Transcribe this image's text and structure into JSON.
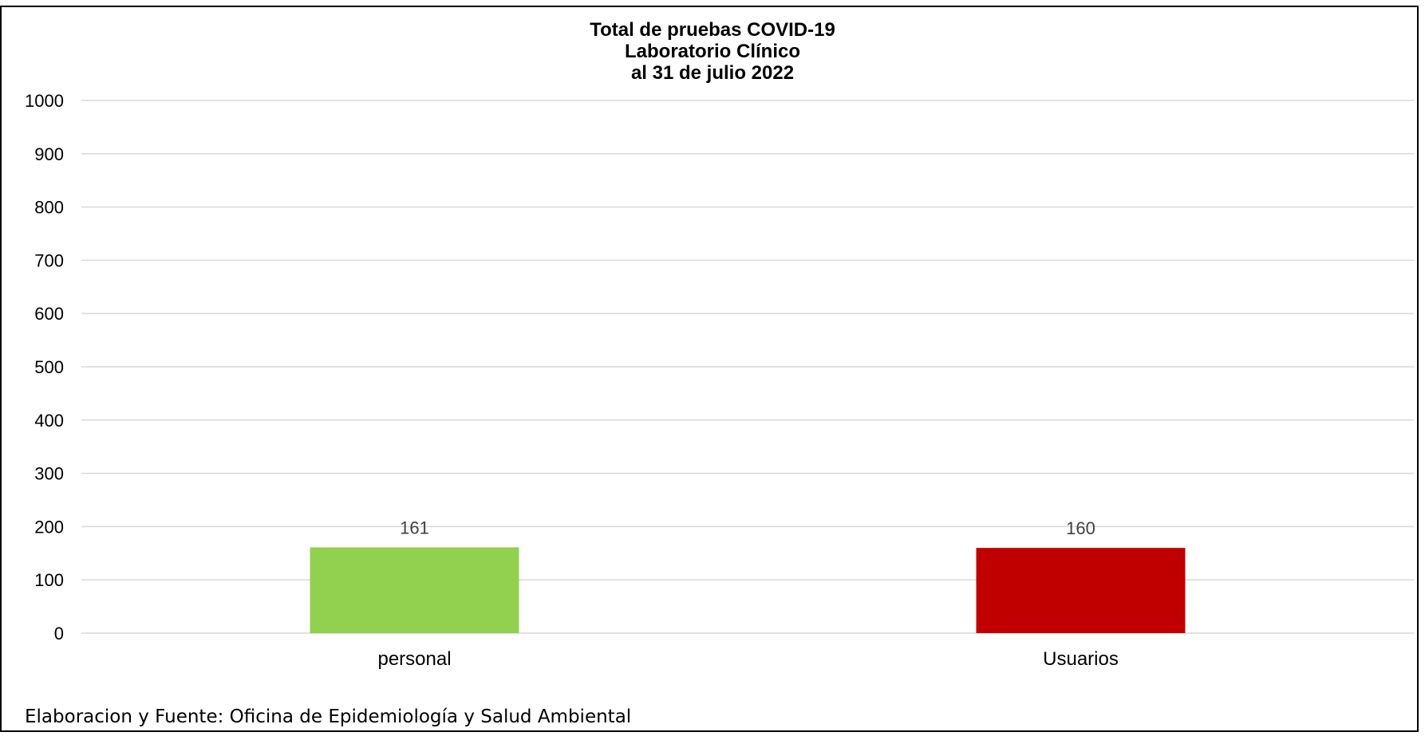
{
  "chart_data": {
    "type": "bar",
    "title_lines": [
      "Total de pruebas COVID-19",
      "Laboratorio Clínico",
      "al 31 de julio 2022"
    ],
    "categories": [
      "personal",
      "Usuarios"
    ],
    "values": [
      161,
      160
    ],
    "data_labels": [
      "161",
      "160"
    ],
    "colors": [
      "#92d050",
      "#c00000"
    ],
    "xlabel": "",
    "ylabel": "",
    "ylim": [
      0,
      1000
    ],
    "yticks": [
      0,
      100,
      200,
      300,
      400,
      500,
      600,
      700,
      800,
      900,
      1000
    ],
    "ytick_labels": [
      "0",
      "100",
      "200",
      "300",
      "400",
      "500",
      "600",
      "700",
      "800",
      "900",
      "1000"
    ],
    "grid": true,
    "grid_color": "#d9d9d9",
    "legend": "none"
  },
  "footer": {
    "source": "Elaboracion y Fuente: Oficina de Epidemiología y Salud Ambiental"
  }
}
